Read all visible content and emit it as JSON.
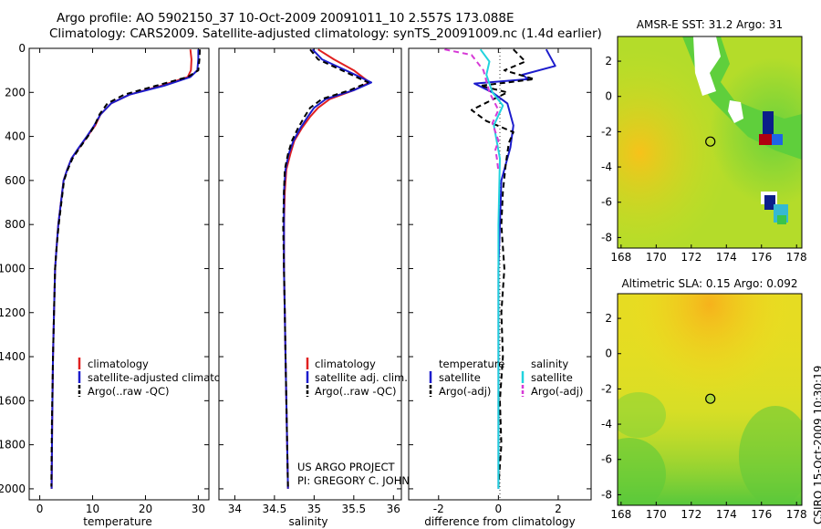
{
  "titles": {
    "line1": "Argo profile: AO 5902150_37 10-Oct-2009 20091011_10 2.557S 173.088E",
    "line2": "Climatology: CARS2009. Satellite-adjusted climatology: synTS_20091009.nc (1.4d earlier)"
  },
  "credit": {
    "line1": "US ARGO PROJECT",
    "line2": "PI: GREGORY C. JOHNSON"
  },
  "timestamp": "CSIRO 15-Oct-2009 10:30:19",
  "colors": {
    "climatology": "#e02020",
    "satellite": "#1c1ccc",
    "argo": "#000000",
    "satellite_salinity": "#22d3de",
    "argo_salinity": "#d63ad6"
  },
  "chart_data": [
    {
      "type": "line",
      "name": "temperature-profile",
      "xlabel": "temperature",
      "xlim": [
        -2,
        32
      ],
      "ylim": [
        2050,
        0
      ],
      "xticks": [
        0,
        10,
        20,
        30
      ],
      "yticks": [
        0,
        200,
        400,
        600,
        800,
        1000,
        1200,
        1400,
        1600,
        1800,
        2000
      ],
      "legend": [
        "climatology",
        "satellite-adjusted climatology",
        "Argo(..raw -QC)"
      ],
      "series": [
        {
          "name": "climatology",
          "color": "#e02020",
          "dash": "",
          "x": [
            28.5,
            28.7,
            28.6,
            28.0,
            23.0,
            17.0,
            13.5,
            11.5,
            10.5,
            9.0,
            7.5,
            6.0,
            5.2,
            4.5,
            4.0,
            3.5,
            3.2,
            2.9,
            2.7,
            2.5,
            2.35,
            2.25
          ],
          "y": [
            5,
            50,
            100,
            130,
            170,
            210,
            250,
            300,
            350,
            400,
            450,
            500,
            550,
            600,
            700,
            800,
            900,
            1000,
            1200,
            1400,
            1700,
            2000
          ]
        },
        {
          "name": "satellite-adjusted climatology",
          "color": "#1c1ccc",
          "dash": "",
          "x": [
            30.0,
            30.0,
            29.8,
            28.5,
            23.5,
            17.0,
            13.5,
            11.5,
            10.3,
            8.9,
            7.4,
            6.0,
            5.2,
            4.5,
            4.0,
            3.5,
            3.2,
            2.9,
            2.7,
            2.5,
            2.35,
            2.25
          ],
          "y": [
            5,
            50,
            100,
            130,
            170,
            210,
            250,
            300,
            350,
            400,
            450,
            500,
            550,
            600,
            700,
            800,
            900,
            1000,
            1200,
            1400,
            1700,
            2000
          ]
        },
        {
          "name": "Argo(..raw -QC)",
          "color": "#000000",
          "dash": "6,4",
          "x": [
            30.3,
            30.2,
            30.0,
            28.0,
            22.0,
            16.0,
            12.8,
            11.3,
            10.4,
            9.1,
            7.6,
            6.2,
            5.3,
            4.6,
            4.1,
            3.6,
            3.2,
            2.9,
            2.7,
            2.5,
            2.3,
            2.2
          ],
          "y": [
            5,
            50,
            100,
            130,
            170,
            210,
            250,
            300,
            350,
            400,
            450,
            500,
            550,
            600,
            700,
            800,
            900,
            1000,
            1200,
            1400,
            1700,
            1990
          ]
        }
      ]
    },
    {
      "type": "line",
      "name": "salinity-profile",
      "xlabel": "salinity",
      "xlim": [
        33.8,
        36.1
      ],
      "ylim": [
        2050,
        0
      ],
      "xticks": [
        34,
        34.5,
        35,
        35.5,
        36
      ],
      "legend": [
        "climatology",
        "satellite adj. clim.",
        "Argo(..raw -QC)"
      ],
      "series": [
        {
          "name": "climatology",
          "color": "#e02020",
          "dash": "",
          "x": [
            35.05,
            35.25,
            35.5,
            35.7,
            35.5,
            35.2,
            35.05,
            34.95,
            34.85,
            34.75,
            34.7,
            34.65,
            34.63,
            34.62,
            34.62,
            34.63,
            34.64,
            34.65,
            34.66,
            34.67
          ],
          "y": [
            5,
            50,
            100,
            155,
            190,
            230,
            270,
            310,
            360,
            420,
            480,
            550,
            650,
            800,
            1000,
            1200,
            1400,
            1600,
            1800,
            2000
          ]
        },
        {
          "name": "satellite adj. clim.",
          "color": "#1c1ccc",
          "dash": "",
          "x": [
            34.98,
            35.1,
            35.4,
            35.72,
            35.5,
            35.15,
            35.0,
            34.92,
            34.83,
            34.74,
            34.68,
            34.64,
            34.62,
            34.62,
            34.62,
            34.63,
            34.64,
            34.65,
            34.66,
            34.67
          ],
          "y": [
            5,
            50,
            100,
            155,
            190,
            230,
            270,
            310,
            360,
            420,
            480,
            550,
            650,
            800,
            1000,
            1200,
            1400,
            1600,
            1800,
            2000
          ]
        },
        {
          "name": "Argo(..raw -QC)",
          "color": "#000000",
          "dash": "6,4",
          "x": [
            34.95,
            35.05,
            35.35,
            35.68,
            35.45,
            35.1,
            34.95,
            34.88,
            34.8,
            34.72,
            34.67,
            34.63,
            34.62,
            34.61,
            34.62,
            34.63,
            34.64,
            34.65,
            34.66,
            34.67
          ],
          "y": [
            5,
            50,
            100,
            155,
            190,
            230,
            270,
            310,
            360,
            420,
            480,
            550,
            650,
            800,
            1000,
            1200,
            1400,
            1600,
            1800,
            1990
          ]
        }
      ]
    },
    {
      "type": "line",
      "name": "difference-profile",
      "xlabel": "difference from climatology",
      "xlim": [
        -3,
        3.1
      ],
      "ylim": [
        2050,
        0
      ],
      "xticks": [
        -2,
        0,
        2
      ],
      "legend_temperature": {
        "heading": "temperature",
        "items": [
          "satellite",
          "Argo(-adj)"
        ]
      },
      "legend_salinity": {
        "heading": "salinity",
        "items": [
          "satellite",
          "Argo(-adj)"
        ]
      },
      "series": [
        {
          "name": "temperature satellite",
          "color": "#1c1ccc",
          "dash": "",
          "x": [
            1.6,
            1.9,
            0.8,
            1.0,
            -0.8,
            -0.2,
            0.3,
            0.5,
            0.4,
            0.1,
            0.05,
            0.0,
            0.0,
            0.0
          ],
          "y": [
            5,
            80,
            120,
            140,
            160,
            200,
            250,
            350,
            450,
            600,
            800,
            1000,
            1500,
            2000
          ]
        },
        {
          "name": "temperature Argo(-adj)",
          "color": "#000000",
          "dash": "6,4",
          "x": [
            0.5,
            0.9,
            0.2,
            1.2,
            -0.6,
            0.3,
            -0.9,
            -0.4,
            0.5,
            0.35,
            0.25,
            0.15,
            0.1,
            0.2,
            0.1,
            0.15,
            0.05,
            0.1,
            0.0
          ],
          "y": [
            5,
            60,
            100,
            140,
            170,
            200,
            280,
            330,
            380,
            430,
            520,
            650,
            800,
            1000,
            1200,
            1400,
            1600,
            1800,
            1990
          ]
        },
        {
          "name": "salinity satellite",
          "color": "#22d3de",
          "dash": "",
          "x": [
            -0.6,
            -0.3,
            -0.4,
            -0.2,
            0.15,
            -0.15,
            0.05,
            0.0,
            0.0,
            0.0
          ],
          "y": [
            5,
            60,
            120,
            200,
            260,
            350,
            500,
            800,
            1400,
            2000
          ]
        },
        {
          "name": "salinity Argo(-adj)",
          "color": "#d63ad6",
          "dash": "6,4",
          "x": [
            -1.8,
            -0.9,
            -0.5,
            -0.3,
            0.0,
            -0.2,
            0.0,
            -0.1,
            -0.05,
            0.0
          ],
          "y": [
            5,
            30,
            100,
            200,
            280,
            340,
            420,
            460,
            500,
            560
          ]
        }
      ]
    },
    {
      "type": "heatmap",
      "name": "amsr-e-sst-map",
      "title": "AMSR-E SST: 31.2 Argo: 31",
      "xticks": [
        168,
        170,
        172,
        174,
        176,
        178
      ],
      "yticks": [
        2,
        0,
        -2,
        -4,
        -6,
        -8
      ],
      "xlim": [
        167.8,
        178.3
      ],
      "ylim": [
        -8.6,
        3.4
      ],
      "argo_position": [
        173.088,
        -2.557
      ]
    },
    {
      "type": "heatmap",
      "name": "altimetric-sla-map",
      "title": "Altimetric SLA: 0.15 Argo: 0.092",
      "xticks": [
        168,
        170,
        172,
        174,
        176,
        178
      ],
      "yticks": [
        2,
        0,
        -2,
        -4,
        -6,
        -8
      ],
      "xlim": [
        167.8,
        178.3
      ],
      "ylim": [
        -8.6,
        3.4
      ],
      "argo_position": [
        173.088,
        -2.557
      ]
    }
  ]
}
